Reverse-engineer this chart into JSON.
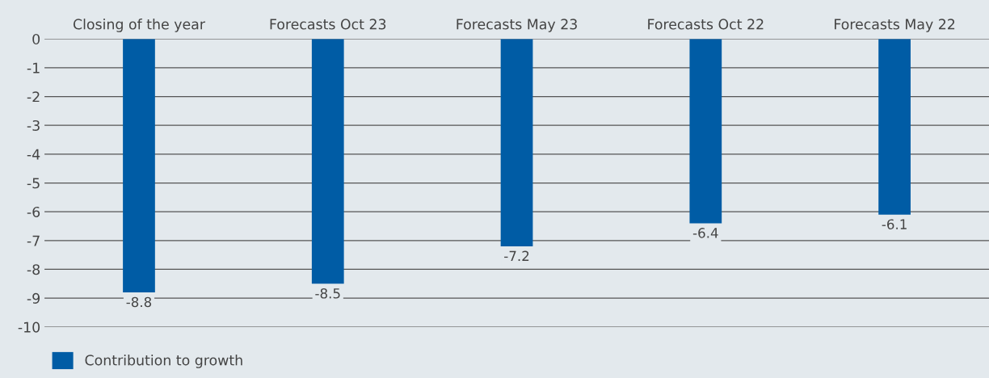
{
  "chart_data": {
    "type": "bar",
    "categories": [
      "Closing of the year",
      "Forecasts Oct 23",
      "Forecasts May 23",
      "Forecasts Oct 22",
      "Forecasts May 22"
    ],
    "series": [
      {
        "name": "Contribution to growth",
        "color": "#005ca5",
        "values": [
          -8.8,
          -8.5,
          -7.2,
          -6.4,
          -6.1
        ]
      }
    ],
    "ylim": [
      -10,
      0
    ],
    "yticks": [
      -10,
      -9,
      -8,
      -7,
      -6,
      -5,
      -4,
      -3,
      -2,
      -1,
      0
    ],
    "grid": "y",
    "data_labels": true,
    "legend": "bottom left"
  }
}
